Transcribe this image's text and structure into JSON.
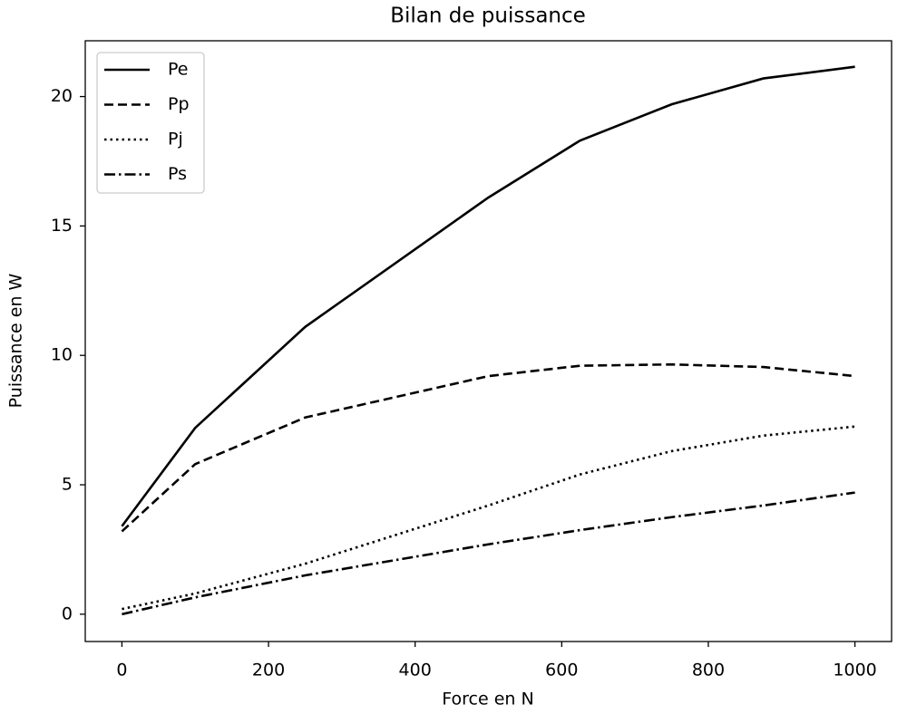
{
  "chart_data": {
    "type": "line",
    "title": "Bilan de puissance",
    "xlabel": "Force en N",
    "ylabel": "Puissance en W",
    "x": [
      0,
      100,
      250,
      500,
      625,
      750,
      875,
      1000
    ],
    "series": [
      {
        "name": "Pe",
        "color": "#000000",
        "linestyle": "solid",
        "values": [
          3.4,
          7.2,
          11.1,
          16.1,
          18.3,
          19.7,
          20.7,
          21.15
        ]
      },
      {
        "name": "Pp",
        "color": "#000000",
        "linestyle": "dashed",
        "values": [
          3.2,
          5.8,
          7.6,
          9.2,
          9.6,
          9.65,
          9.55,
          9.2
        ]
      },
      {
        "name": "Pj",
        "color": "#000000",
        "linestyle": "dotted",
        "values": [
          0.2,
          0.8,
          1.95,
          4.2,
          5.4,
          6.3,
          6.9,
          7.25
        ]
      },
      {
        "name": "Ps",
        "color": "#000000",
        "linestyle": "dashdot",
        "values": [
          0,
          0.65,
          1.5,
          2.7,
          3.25,
          3.75,
          4.2,
          4.7
        ]
      }
    ],
    "xlim": [
      -50,
      1050
    ],
    "xticks": [
      0,
      200,
      400,
      600,
      800,
      1000
    ],
    "ylim": [
      -1.055,
      22.155
    ],
    "yticks": [
      0,
      5,
      10,
      15,
      20
    ],
    "legend": "upper left"
  }
}
